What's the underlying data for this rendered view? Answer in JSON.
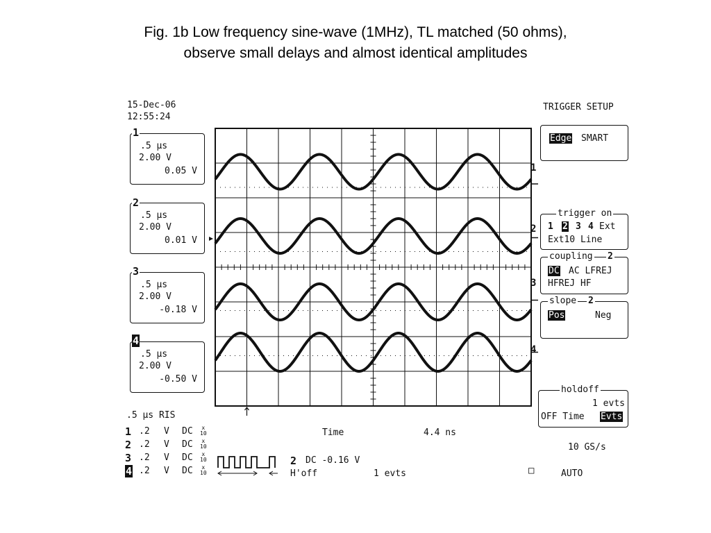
{
  "caption": {
    "line1": "Fig. 1b   Low frequency sine-wave (1MHz), TL matched (50 ohms),",
    "line2": "observe small delays and almost identical amplitudes"
  },
  "header": {
    "date": "15-Dec-06",
    "time": "12:55:24"
  },
  "channels": [
    {
      "num": "1",
      "timebase": ".5 µs",
      "volts": "2.00 V",
      "offset": "0.05 V"
    },
    {
      "num": "2",
      "timebase": ".5 µs",
      "volts": "2.00 V",
      "offset": "0.01 V"
    },
    {
      "num": "3",
      "timebase": ".5 µs",
      "volts": "2.00 V",
      "offset": "-0.18 V"
    },
    {
      "num": "4",
      "timebase": ".5 µs",
      "volts": "2.00 V",
      "offset": "-0.50 V"
    }
  ],
  "trace_labels": [
    "1",
    "2",
    "3",
    "4"
  ],
  "waveform": {
    "frequency_mhz": 1,
    "time_per_div_us": 0.5,
    "cycles_on_screen": 4,
    "phase_deg": [
      0,
      0,
      0,
      0
    ],
    "amplitude_div": [
      0.5,
      0.5,
      0.52,
      0.55
    ]
  },
  "trigger_panel": {
    "title": "TRIGGER SETUP",
    "type_selected": "Edge",
    "type_other": "SMART",
    "trigger_on_label": "trigger on",
    "trigger_on_row1": [
      "1",
      "2",
      "3",
      "4",
      "Ext"
    ],
    "trigger_on_selected": "2",
    "trigger_on_row2": "Ext10 Line",
    "coupling_label": "coupling",
    "coupling_channel": "2",
    "coupling_selected": "DC",
    "coupling_row1_rest": "AC LFREJ",
    "coupling_row2": "HFREJ HF",
    "slope_label": "slope",
    "slope_channel": "2",
    "slope_selected": "Pos",
    "slope_other": "Neg",
    "holdoff_label": "holdoff",
    "holdoff_value": "1 evts",
    "holdoff_options": "OFF Time",
    "holdoff_selected": "Evts",
    "sample_rate": "10 GS/s"
  },
  "bottom": {
    "timebase_mode": ".5 µs RIS",
    "channel_rows": [
      {
        "num": "1",
        "scale": ".2",
        "unit": "V",
        "coupling": "DC",
        "probe_top": "x",
        "probe_bottom": "10"
      },
      {
        "num": "2",
        "scale": ".2",
        "unit": "V",
        "coupling": "DC",
        "probe_top": "x",
        "probe_bottom": "10"
      },
      {
        "num": "3",
        "scale": ".2",
        "unit": "V",
        "coupling": "DC",
        "probe_top": "x",
        "probe_bottom": "10"
      },
      {
        "num": "4",
        "scale": ".2",
        "unit": "V",
        "coupling": "DC",
        "probe_top": "x",
        "probe_bottom": "10"
      }
    ],
    "time_label": "Time",
    "time_value": "4.4 ns",
    "trig_channel": "2",
    "trig_info": "DC -0.16 V",
    "hoff_label": "H'off",
    "hoff_value": "1 evts",
    "mode_symbol": "□",
    "mode": "AUTO"
  }
}
